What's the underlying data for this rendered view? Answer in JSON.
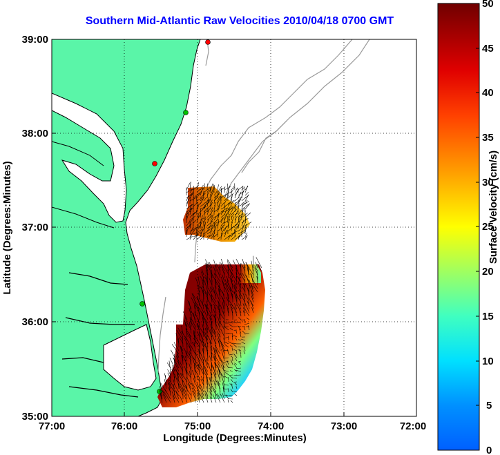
{
  "title": "Southern Mid-Atlantic Raw Velocities 2010/04/18 0700 GMT",
  "x_axis": {
    "label": "Longitude (Degrees:Minutes)",
    "ticks": [
      "77:00",
      "76:00",
      "75:00",
      "74:00",
      "73:00",
      "72:00"
    ]
  },
  "y_axis": {
    "label": "Latitude (Degrees:Minutes)",
    "ticks": [
      "39:00",
      "38:00",
      "37:00",
      "36:00",
      "35:00"
    ]
  },
  "colorbar": {
    "label": "Surface Velocity (cm/s)",
    "ticks": [
      "50",
      "45",
      "40",
      "35",
      "30",
      "25",
      "20",
      "15",
      "10",
      "5",
      "0"
    ],
    "min": 0,
    "max": 50,
    "colormap": [
      "#0000ff",
      "#00a0ff",
      "#00ffff",
      "#80ff80",
      "#ffff00",
      "#ff8000",
      "#ff0000",
      "#800000"
    ]
  },
  "colors": {
    "land": "#5af5a8",
    "coastline": "#000000",
    "bathymetry": "#9a9a9a",
    "grid": "#000000"
  },
  "stations": [
    {
      "color": "#ff0000"
    },
    {
      "color": "#00c000"
    },
    {
      "color": "#ff0000"
    },
    {
      "color": "#00c000"
    },
    {
      "color": "#00c000"
    }
  ],
  "chart_data": {
    "type": "heatmap",
    "title": "Southern Mid-Atlantic Raw Velocities 2010/04/18 0700 GMT",
    "xlabel": "Longitude (Degrees:Minutes)",
    "ylabel": "Latitude (Degrees:Minutes)",
    "xlim": [
      "77:00",
      "72:00"
    ],
    "ylim": [
      "35:00",
      "39:00"
    ],
    "colorbar_range": [
      0,
      50
    ],
    "colorbar_label": "Surface Velocity (cm/s)",
    "grid": true
  }
}
